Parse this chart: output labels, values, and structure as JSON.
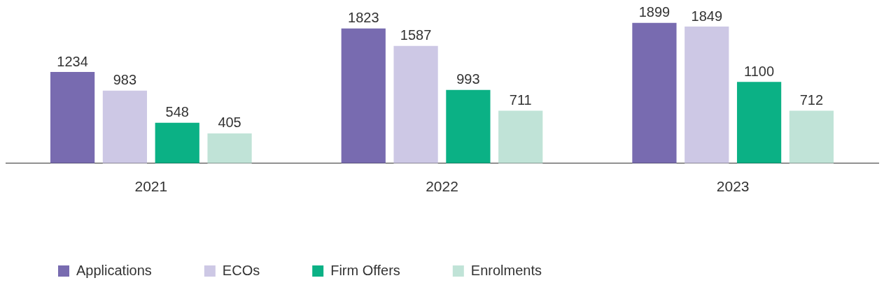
{
  "chart_data": {
    "type": "bar",
    "categories": [
      "2021",
      "2022",
      "2023"
    ],
    "series": [
      {
        "name": "Applications",
        "color": "#786bb0",
        "values": [
          1234,
          1823,
          1899
        ]
      },
      {
        "name": "ECOs",
        "color": "#cdc8e5",
        "values": [
          983,
          1587,
          1849
        ]
      },
      {
        "name": "Firm Offers",
        "color": "#0bb185",
        "values": [
          548,
          993,
          1100
        ]
      },
      {
        "name": "Enrolments",
        "color": "#c0e3d7",
        "values": [
          405,
          711,
          712
        ]
      }
    ],
    "data_labels": true,
    "grid": false,
    "legend": "bottom left",
    "tick_labels": "x"
  }
}
